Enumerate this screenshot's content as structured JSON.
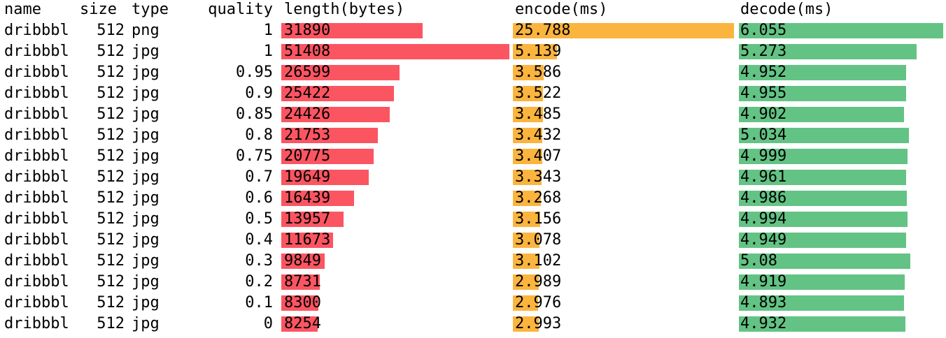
{
  "colors": {
    "length": "#fb5562",
    "encode": "#fbb43e",
    "decode": "#63c384"
  },
  "headers": {
    "name": "name",
    "size": "size",
    "type": "type",
    "quality": "quality",
    "length": "length(bytes)",
    "encode": "encode(ms)",
    "decode": "decode(ms)"
  },
  "chart_data": {
    "type": "table",
    "columns": [
      "name",
      "size",
      "type",
      "quality",
      "length(bytes)",
      "encode(ms)",
      "decode(ms)"
    ],
    "bar_columns": [
      "length(bytes)",
      "encode(ms)",
      "decode(ms)"
    ],
    "max": {
      "length": 51408,
      "encode": 25.788,
      "decode": 6.055
    },
    "rows": [
      {
        "name": "dribbbl",
        "size": "512",
        "type": "png",
        "quality": "1",
        "length": "31890",
        "encode": "25.788",
        "decode": "6.055"
      },
      {
        "name": "dribbbl",
        "size": "512",
        "type": "jpg",
        "quality": "1",
        "length": "51408",
        "encode": "5.139",
        "decode": "5.273"
      },
      {
        "name": "dribbbl",
        "size": "512",
        "type": "jpg",
        "quality": "0.95",
        "length": "26599",
        "encode": "3.586",
        "decode": "4.952"
      },
      {
        "name": "dribbbl",
        "size": "512",
        "type": "jpg",
        "quality": "0.9",
        "length": "25422",
        "encode": "3.522",
        "decode": "4.955"
      },
      {
        "name": "dribbbl",
        "size": "512",
        "type": "jpg",
        "quality": "0.85",
        "length": "24426",
        "encode": "3.485",
        "decode": "4.902"
      },
      {
        "name": "dribbbl",
        "size": "512",
        "type": "jpg",
        "quality": "0.8",
        "length": "21753",
        "encode": "3.432",
        "decode": "5.034"
      },
      {
        "name": "dribbbl",
        "size": "512",
        "type": "jpg",
        "quality": "0.75",
        "length": "20775",
        "encode": "3.407",
        "decode": "4.999"
      },
      {
        "name": "dribbbl",
        "size": "512",
        "type": "jpg",
        "quality": "0.7",
        "length": "19649",
        "encode": "3.343",
        "decode": "4.961"
      },
      {
        "name": "dribbbl",
        "size": "512",
        "type": "jpg",
        "quality": "0.6",
        "length": "16439",
        "encode": "3.268",
        "decode": "4.986"
      },
      {
        "name": "dribbbl",
        "size": "512",
        "type": "jpg",
        "quality": "0.5",
        "length": "13957",
        "encode": "3.156",
        "decode": "4.994"
      },
      {
        "name": "dribbbl",
        "size": "512",
        "type": "jpg",
        "quality": "0.4",
        "length": "11673",
        "encode": "3.078",
        "decode": "4.949"
      },
      {
        "name": "dribbbl",
        "size": "512",
        "type": "jpg",
        "quality": "0.3",
        "length": "9849",
        "encode": "3.102",
        "decode": "5.08"
      },
      {
        "name": "dribbbl",
        "size": "512",
        "type": "jpg",
        "quality": "0.2",
        "length": "8731",
        "encode": "2.989",
        "decode": "4.919"
      },
      {
        "name": "dribbbl",
        "size": "512",
        "type": "jpg",
        "quality": "0.1",
        "length": "8300",
        "encode": "2.976",
        "decode": "4.893"
      },
      {
        "name": "dribbbl",
        "size": "512",
        "type": "jpg",
        "quality": "0",
        "length": "8254",
        "encode": "2.993",
        "decode": "4.932"
      }
    ]
  }
}
